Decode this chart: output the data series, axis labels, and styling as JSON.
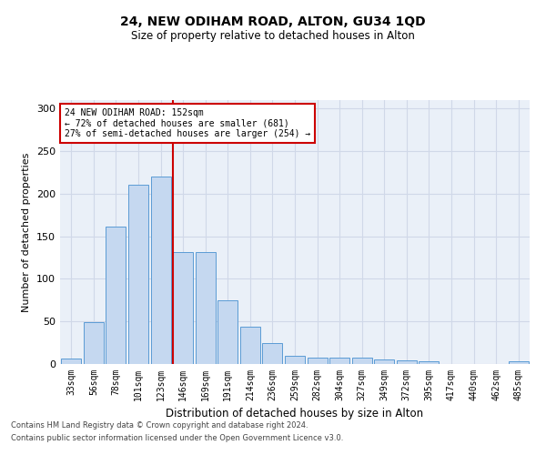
{
  "title1": "24, NEW ODIHAM ROAD, ALTON, GU34 1QD",
  "title2": "Size of property relative to detached houses in Alton",
  "xlabel": "Distribution of detached houses by size in Alton",
  "ylabel": "Number of detached properties",
  "categories": [
    "33sqm",
    "56sqm",
    "78sqm",
    "101sqm",
    "123sqm",
    "146sqm",
    "169sqm",
    "191sqm",
    "214sqm",
    "236sqm",
    "259sqm",
    "282sqm",
    "304sqm",
    "327sqm",
    "349sqm",
    "372sqm",
    "395sqm",
    "417sqm",
    "440sqm",
    "462sqm",
    "485sqm"
  ],
  "values": [
    6,
    49,
    161,
    211,
    220,
    132,
    132,
    75,
    44,
    25,
    10,
    8,
    8,
    7,
    5,
    4,
    3,
    0,
    0,
    0,
    3
  ],
  "bar_color": "#c5d8f0",
  "bar_edge_color": "#5b9bd5",
  "grid_color": "#d0d8e8",
  "background_color": "#eaf0f8",
  "vline_index": 5,
  "vline_color": "#cc0000",
  "annotation_line1": "24 NEW ODIHAM ROAD: 152sqm",
  "annotation_line2": "← 72% of detached houses are smaller (681)",
  "annotation_line3": "27% of semi-detached houses are larger (254) →",
  "annotation_box_color": "#cc0000",
  "footer1": "Contains HM Land Registry data © Crown copyright and database right 2024.",
  "footer2": "Contains public sector information licensed under the Open Government Licence v3.0.",
  "ylim": [
    0,
    310
  ],
  "yticks": [
    0,
    50,
    100,
    150,
    200,
    250,
    300
  ]
}
